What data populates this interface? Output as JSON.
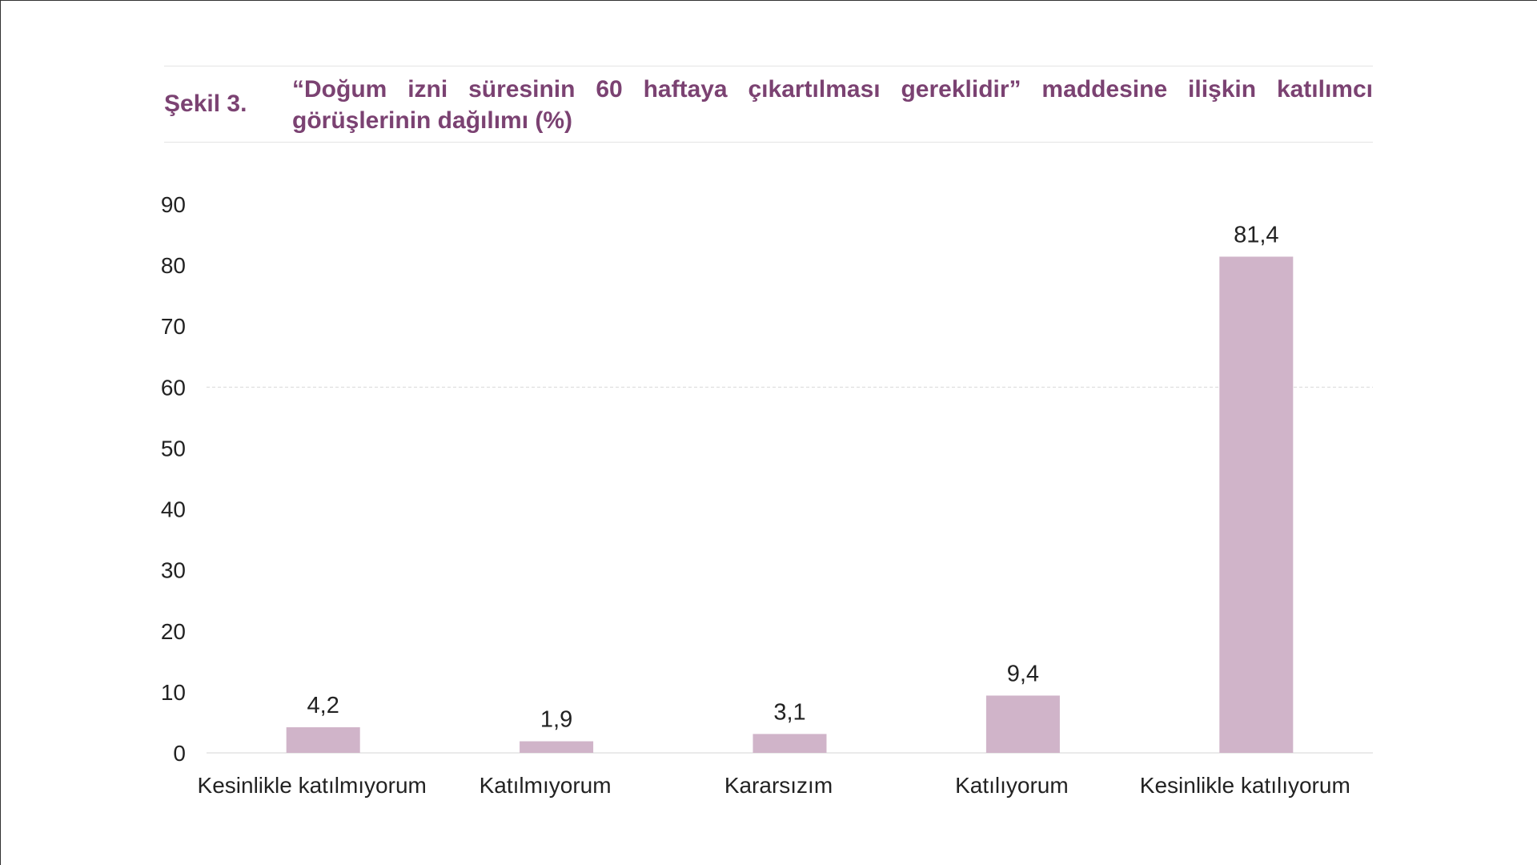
{
  "figure": {
    "label": "Şekil 3.",
    "title": "“Doğum izni süresinin 60 haftaya çıkartılması gereklidir” maddesine ilişkin katılımcı görüşlerinin dağılımı (%)"
  },
  "colors": {
    "bar": "#d0b4c9",
    "title": "#7b4272"
  },
  "chart_data": {
    "type": "bar",
    "categories": [
      "Kesinlikle katılmıyorum",
      "Katılmıyorum",
      "Kararsızım",
      "Katılıyorum",
      "Kesinlikle katılıyorum"
    ],
    "values": [
      4.2,
      1.9,
      3.1,
      9.4,
      81.4
    ],
    "value_labels": [
      "4,2",
      "1,9",
      "3,1",
      "9,4",
      "81,4"
    ],
    "yticks": [
      0,
      10,
      20,
      30,
      40,
      50,
      60,
      70,
      80,
      90
    ],
    "ylim": [
      0,
      90
    ],
    "title": "“Doğum izni süresinin 60 haftaya çıkartılması gereklidir” maddesine ilişkin katılımcı görüşlerinin dağılımı (%)",
    "xlabel": "",
    "ylabel": "",
    "grid": {
      "y_line_at": 60,
      "style": "dashed"
    },
    "legend": "none"
  }
}
